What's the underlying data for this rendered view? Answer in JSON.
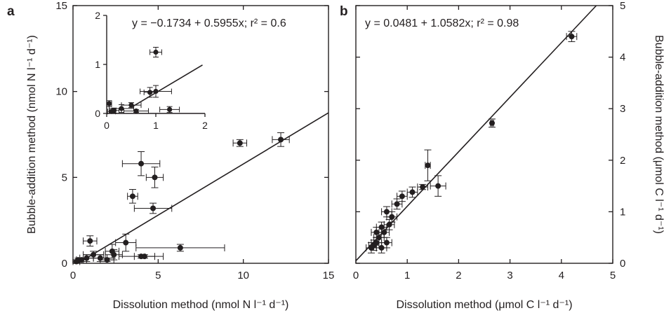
{
  "chart_data": [
    {
      "panel_label": "a",
      "type": "scatter",
      "equation": "y = −0.1734 + 0.5955x; r² = 0.6",
      "xlabel": "Dissolution method (nmol N l⁻¹ d⁻¹)",
      "ylabel": "Bubble-addition method (nmol N l⁻¹ d⁻¹)",
      "xlim": [
        0,
        15
      ],
      "ylim": [
        0,
        15
      ],
      "xticks": [
        0,
        5,
        10,
        15
      ],
      "yticks": [
        0,
        5,
        10,
        15
      ],
      "fit": {
        "intercept": -0.1734,
        "slope": 0.5955
      },
      "points": [
        {
          "x": 12.2,
          "y": 7.2,
          "xerr": 0.5,
          "yerr": 0.4
        },
        {
          "x": 9.8,
          "y": 7.0,
          "xerr": 0.4,
          "yerr": 0.2
        },
        {
          "x": 4.0,
          "y": 5.8,
          "xerr": 1.1,
          "yerr": 0.7
        },
        {
          "x": 4.8,
          "y": 5.0,
          "xerr": 0.5,
          "yerr": 0.6
        },
        {
          "x": 3.5,
          "y": 3.9,
          "xerr": 0.3,
          "yerr": 0.4
        },
        {
          "x": 4.7,
          "y": 3.2,
          "xerr": 1.1,
          "yerr": 0.3
        },
        {
          "x": 1.0,
          "y": 1.3,
          "xerr": 0.4,
          "yerr": 0.3
        },
        {
          "x": 3.1,
          "y": 1.2,
          "xerr": 0.6,
          "yerr": 0.5
        },
        {
          "x": 6.3,
          "y": 0.9,
          "xerr": 2.6,
          "yerr": 0.2
        },
        {
          "x": 2.3,
          "y": 0.7,
          "xerr": 0.4,
          "yerr": 0.4
        },
        {
          "x": 2.4,
          "y": 0.5,
          "xerr": 0.5,
          "yerr": 0.3
        },
        {
          "x": 4.2,
          "y": 0.4,
          "xerr": 0.6,
          "yerr": 0.1
        },
        {
          "x": 4.0,
          "y": 0.4,
          "xerr": 1.3,
          "yerr": 0.1
        },
        {
          "x": 1.2,
          "y": 0.5,
          "xerr": 0.6,
          "yerr": 0.2
        },
        {
          "x": 0.8,
          "y": 0.3,
          "xerr": 0.4,
          "yerr": 0.2
        },
        {
          "x": 0.5,
          "y": 0.2,
          "xerr": 0.3,
          "yerr": 0.1
        },
        {
          "x": 0.3,
          "y": 0.2,
          "xerr": 0.3,
          "yerr": 0.1
        },
        {
          "x": 1.6,
          "y": 0.3,
          "xerr": 0.4,
          "yerr": 0.2
        },
        {
          "x": 0.2,
          "y": 0.1,
          "xerr": 0.2,
          "yerr": 0.1
        },
        {
          "x": 2.0,
          "y": 0.2,
          "xerr": 0.4,
          "yerr": 0.1
        }
      ],
      "inset": {
        "xlim": [
          0,
          2
        ],
        "ylim": [
          0,
          2
        ],
        "xticks": [
          0,
          1,
          2
        ],
        "yticks": [
          0,
          1,
          2
        ],
        "fit_x_range": [
          0.5,
          1.95
        ],
        "points": [
          {
            "x": 1.0,
            "y": 1.25,
            "xerr": 0.12,
            "yerr": 0.1
          },
          {
            "x": 1.0,
            "y": 0.45,
            "xerr": 0.32,
            "yerr": 0.12
          },
          {
            "x": 0.88,
            "y": 0.43,
            "xerr": 0.12,
            "yerr": 0.1
          },
          {
            "x": 1.28,
            "y": 0.08,
            "xerr": 0.2,
            "yerr": 0.06
          },
          {
            "x": 0.5,
            "y": 0.17,
            "xerr": 0.2,
            "yerr": 0.05
          },
          {
            "x": 0.3,
            "y": 0.1,
            "xerr": 0.25,
            "yerr": 0.08
          },
          {
            "x": 0.15,
            "y": 0.06,
            "xerr": 0.1,
            "yerr": 0.05
          },
          {
            "x": 0.6,
            "y": 0.05,
            "xerr": 0.25,
            "yerr": 0.03
          },
          {
            "x": 0.05,
            "y": 0.2,
            "xerr": 0.05,
            "yerr": 0.06
          },
          {
            "x": 0.1,
            "y": 0.04,
            "xerr": 0.08,
            "yerr": 0.03
          }
        ]
      }
    },
    {
      "panel_label": "b",
      "type": "scatter",
      "equation": "y = 0.0481 + 1.0582x; r² = 0.98",
      "xlabel": "Dissolution method (μmol C l⁻¹ d⁻¹)",
      "ylabel": "Bubble-addition method (μmol C l⁻¹ d⁻¹)",
      "xlim": [
        0,
        5
      ],
      "ylim": [
        0,
        5
      ],
      "xticks": [
        0,
        1,
        2,
        3,
        4,
        5
      ],
      "yticks": [
        0,
        1,
        2,
        3,
        4,
        5
      ],
      "fit": {
        "intercept": 0.0481,
        "slope": 1.0582
      },
      "points": [
        {
          "x": 4.2,
          "y": 4.4,
          "xerr": 0.1,
          "yerr": 0.1
        },
        {
          "x": 2.65,
          "y": 2.72,
          "xerr": 0.03,
          "yerr": 0.08
        },
        {
          "x": 1.4,
          "y": 1.9,
          "xerr": 0.05,
          "yerr": 0.3
        },
        {
          "x": 1.6,
          "y": 1.5,
          "xerr": 0.15,
          "yerr": 0.2
        },
        {
          "x": 1.3,
          "y": 1.48,
          "xerr": 0.1,
          "yerr": 0.05
        },
        {
          "x": 1.1,
          "y": 1.38,
          "xerr": 0.1,
          "yerr": 0.1
        },
        {
          "x": 0.9,
          "y": 1.3,
          "xerr": 0.1,
          "yerr": 0.1
        },
        {
          "x": 0.8,
          "y": 1.15,
          "xerr": 0.1,
          "yerr": 0.1
        },
        {
          "x": 0.6,
          "y": 1.0,
          "xerr": 0.1,
          "yerr": 0.1
        },
        {
          "x": 0.7,
          "y": 0.9,
          "xerr": 0.1,
          "yerr": 0.1
        },
        {
          "x": 0.5,
          "y": 0.7,
          "xerr": 0.1,
          "yerr": 0.1
        },
        {
          "x": 0.55,
          "y": 0.6,
          "xerr": 0.1,
          "yerr": 0.1
        },
        {
          "x": 0.45,
          "y": 0.5,
          "xerr": 0.1,
          "yerr": 0.1
        },
        {
          "x": 0.4,
          "y": 0.4,
          "xerr": 0.1,
          "yerr": 0.1
        },
        {
          "x": 0.35,
          "y": 0.35,
          "xerr": 0.1,
          "yerr": 0.1
        },
        {
          "x": 0.3,
          "y": 0.3,
          "xerr": 0.1,
          "yerr": 0.1
        },
        {
          "x": 0.6,
          "y": 0.4,
          "xerr": 0.1,
          "yerr": 0.1
        },
        {
          "x": 0.5,
          "y": 0.3,
          "xerr": 0.1,
          "yerr": 0.1
        },
        {
          "x": 0.65,
          "y": 0.75,
          "xerr": 0.1,
          "yerr": 0.1
        },
        {
          "x": 0.4,
          "y": 0.6,
          "xerr": 0.1,
          "yerr": 0.1
        }
      ]
    }
  ]
}
